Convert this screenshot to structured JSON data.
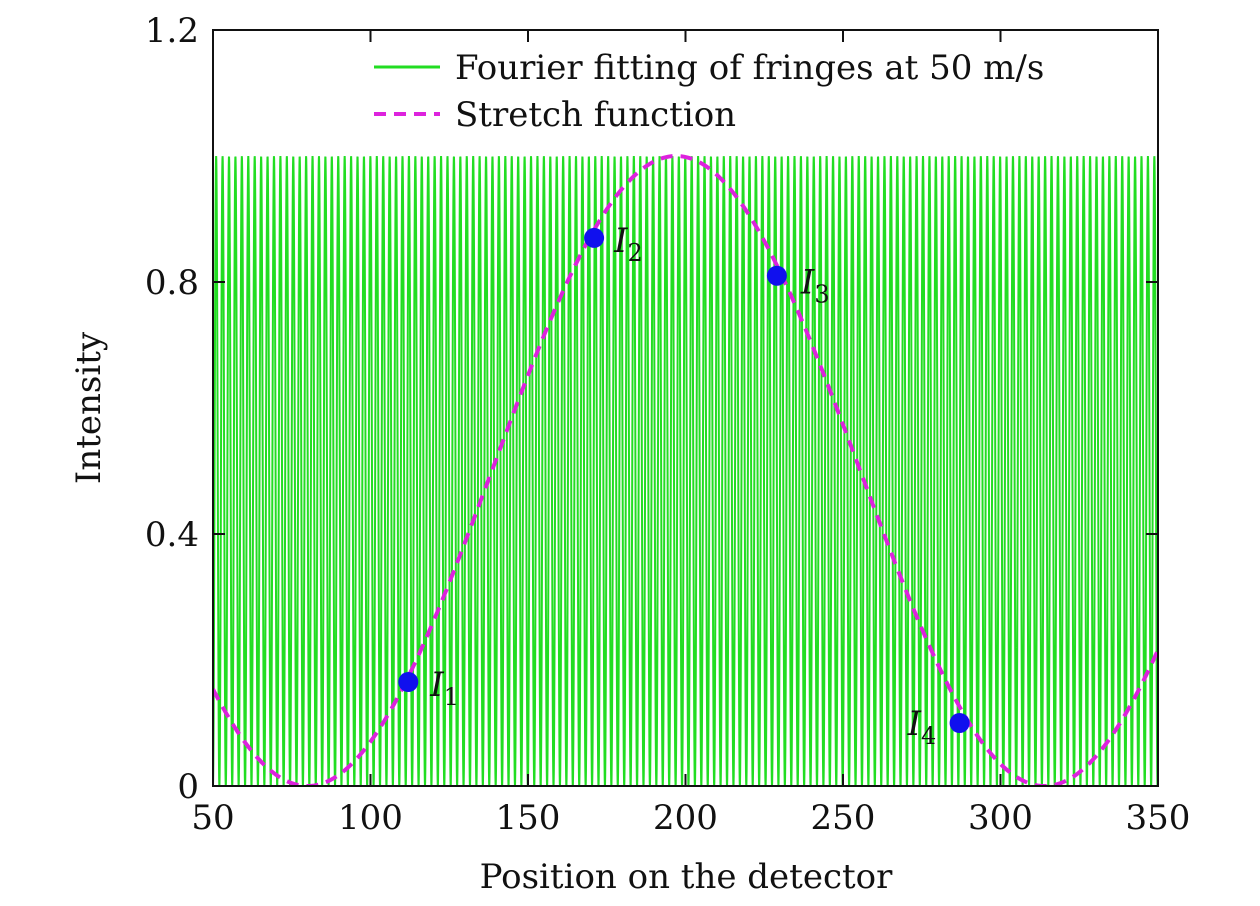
{
  "chart_data": {
    "type": "line",
    "xlabel": "Position on the detector",
    "ylabel": "Intensity",
    "xlim": [
      50,
      350
    ],
    "ylim": [
      0,
      1.2
    ],
    "xticks": [
      50,
      100,
      150,
      200,
      250,
      300,
      350
    ],
    "yticks": [
      0,
      0.4,
      0.8,
      1.2
    ],
    "ytick_labels": [
      "0",
      "0.4",
      "0.8",
      "1.2"
    ],
    "grid": false,
    "legend_position": "top-right",
    "colors": {
      "fringes": "#22dd22",
      "stretch": "#dd22dd",
      "points": "#1010ee",
      "axes": "#111111"
    },
    "series": [
      {
        "name": "Fourier fitting of fringes at 50 m/s",
        "style": "solid",
        "color": "#22dd22",
        "function": "fringe",
        "amplitude_min": 0,
        "amplitude_max": 1.0,
        "period": 2.04
      },
      {
        "name": "Stretch function",
        "style": "dashed",
        "color": "#dd22dd",
        "function": "stretch",
        "peak_x": 197,
        "trough_x": 80,
        "min": 0,
        "max": 1.0
      }
    ],
    "points": [
      {
        "label": "I",
        "sub": "1",
        "x": 112,
        "y": 0.165
      },
      {
        "label": "I",
        "sub": "2",
        "x": 171,
        "y": 0.87
      },
      {
        "label": "I",
        "sub": "3",
        "x": 229,
        "y": 0.81
      },
      {
        "label": "I",
        "sub": "4",
        "x": 287,
        "y": 0.1
      }
    ]
  }
}
